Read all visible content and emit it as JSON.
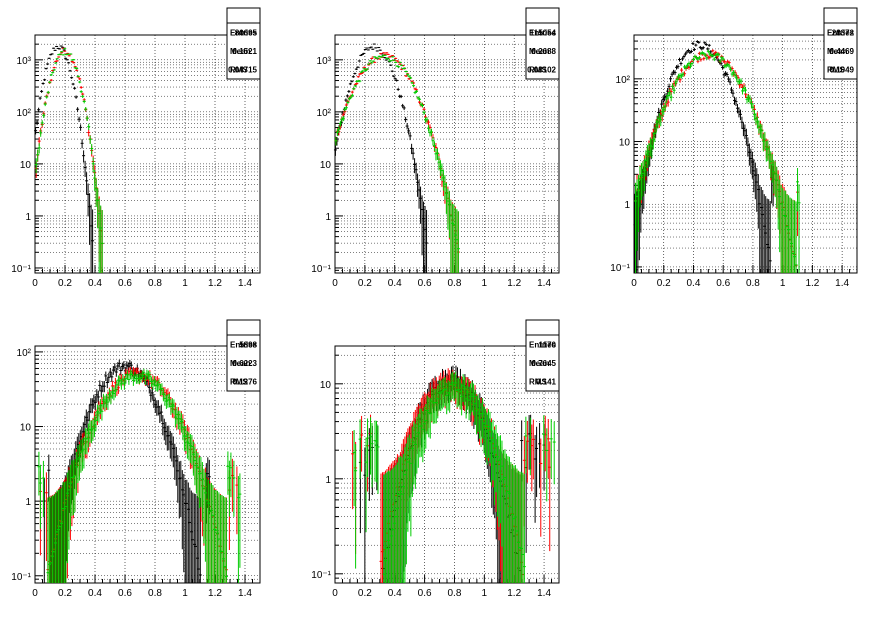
{
  "colors": {
    "reference": "#000000",
    "series_red": "#ff0000",
    "series_green": "#00cc00",
    "frame": "#000000",
    "grid": "#000000"
  },
  "chart_data": [
    {
      "type": "histogram",
      "y_scale": "log",
      "xlim": [
        0,
        1.5
      ],
      "ylim": [
        0.08,
        3000
      ],
      "x_ticks": [
        "0",
        "0.2",
        "0.4",
        "0.6",
        "0.8",
        "1",
        "1.2",
        "1.4"
      ],
      "y_ticks": [
        {
          "v": 0.1,
          "label": "10⁻¹"
        },
        {
          "v": 1,
          "label": "1"
        },
        {
          "v": 10,
          "label": "10"
        },
        {
          "v": 100,
          "label": "10²"
        },
        {
          "v": 1000,
          "label": "10³"
        }
      ],
      "stats": [
        {
          "label": "Entries",
          "value": "80695"
        },
        {
          "label": "Mean",
          "value": "0.1521"
        },
        {
          "label": "RMS",
          "value": "0.04715"
        }
      ],
      "series": [
        {
          "color": "reference",
          "mean": 0.155,
          "sigma": 0.055,
          "peak": 1800
        },
        {
          "color": "series_red",
          "mean": 0.2,
          "sigma": 0.06,
          "peak": 1500
        },
        {
          "color": "series_green",
          "mean": 0.2,
          "sigma": 0.06,
          "peak": 1450
        }
      ]
    },
    {
      "type": "histogram",
      "y_scale": "log",
      "xlim": [
        0,
        1.5
      ],
      "ylim": [
        0.08,
        3000
      ],
      "x_ticks": [
        "0",
        "0.2",
        "0.4",
        "0.6",
        "0.8",
        "1",
        "1.2",
        "1.4"
      ],
      "y_ticks": [
        {
          "v": 0.1,
          "label": "10⁻¹"
        },
        {
          "v": 1,
          "label": "1"
        },
        {
          "v": 10,
          "label": "10"
        },
        {
          "v": 100,
          "label": "10²"
        },
        {
          "v": 1000,
          "label": "10³"
        }
      ],
      "stats": [
        {
          "label": "Entries",
          "value": "115054"
        },
        {
          "label": "Mean",
          "value": "0.2688"
        },
        {
          "label": "RMS",
          "value": "0.08102"
        }
      ],
      "series": [
        {
          "color": "reference",
          "mean": 0.26,
          "sigma": 0.085,
          "peak": 1800
        },
        {
          "color": "series_red",
          "mean": 0.33,
          "sigma": 0.12,
          "peak": 1200
        },
        {
          "color": "series_green",
          "mean": 0.33,
          "sigma": 0.12,
          "peak": 1150
        }
      ]
    },
    {
      "type": "histogram",
      "y_scale": "log",
      "xlim": [
        0,
        1.5
      ],
      "ylim": [
        0.08,
        500
      ],
      "x_ticks": [
        "0",
        "0.2",
        "0.4",
        "0.6",
        "0.8",
        "1",
        "1.2",
        "1.4"
      ],
      "y_ticks": [
        {
          "v": 0.1,
          "label": "10⁻¹"
        },
        {
          "v": 1,
          "label": "1"
        },
        {
          "v": 10,
          "label": "10"
        },
        {
          "v": 100,
          "label": "10²"
        }
      ],
      "stats": [
        {
          "label": "Entries",
          "value": "28372"
        },
        {
          "label": "Mean",
          "value": "0.4469"
        },
        {
          "label": "RMS",
          "value": "0.1049"
        }
      ],
      "series": [
        {
          "color": "reference",
          "mean": 0.44,
          "sigma": 0.12,
          "peak": 350
        },
        {
          "color": "series_red",
          "mean": 0.5,
          "sigma": 0.15,
          "peak": 250
        },
        {
          "color": "series_green",
          "mean": 0.5,
          "sigma": 0.15,
          "peak": 240
        }
      ]
    },
    {
      "type": "histogram",
      "y_scale": "log",
      "xlim": [
        0,
        1.5
      ],
      "ylim": [
        0.08,
        120
      ],
      "x_ticks": [
        "0",
        "0.2",
        "0.4",
        "0.6",
        "0.8",
        "1",
        "1.2",
        "1.4"
      ],
      "y_ticks": [
        {
          "v": 0.1,
          "label": "10⁻¹"
        },
        {
          "v": 1,
          "label": "1"
        },
        {
          "v": 10,
          "label": "10"
        },
        {
          "v": 100,
          "label": "10²"
        }
      ],
      "stats": [
        {
          "label": "Entries",
          "value": "5898"
        },
        {
          "label": "Mean",
          "value": "0.6223"
        },
        {
          "label": "RMS",
          "value": "0.1276"
        }
      ],
      "series": [
        {
          "color": "reference",
          "mean": 0.6,
          "sigma": 0.14,
          "peak": 65
        },
        {
          "color": "series_red",
          "mean": 0.68,
          "sigma": 0.17,
          "peak": 50
        },
        {
          "color": "series_green",
          "mean": 0.68,
          "sigma": 0.17,
          "peak": 48
        }
      ]
    },
    {
      "type": "histogram",
      "y_scale": "log",
      "xlim": [
        0,
        1.5
      ],
      "ylim": [
        0.08,
        25
      ],
      "x_ticks": [
        "0",
        "0.2",
        "0.4",
        "0.6",
        "0.8",
        "1",
        "1.2",
        "1.4"
      ],
      "y_ticks": [
        {
          "v": 0.1,
          "label": "10⁻¹"
        },
        {
          "v": 1,
          "label": "1"
        },
        {
          "v": 10,
          "label": "10"
        }
      ],
      "stats": [
        {
          "label": "Entries",
          "value": "1170"
        },
        {
          "label": "Mean",
          "value": "0.7645"
        },
        {
          "label": "RMS",
          "value": "0.141"
        }
      ],
      "series": [
        {
          "color": "reference",
          "mean": 0.78,
          "sigma": 0.15,
          "peak": 11
        },
        {
          "color": "series_red",
          "mean": 0.78,
          "sigma": 0.16,
          "peak": 10
        },
        {
          "color": "series_green",
          "mean": 0.8,
          "sigma": 0.16,
          "peak": 9
        }
      ]
    }
  ]
}
